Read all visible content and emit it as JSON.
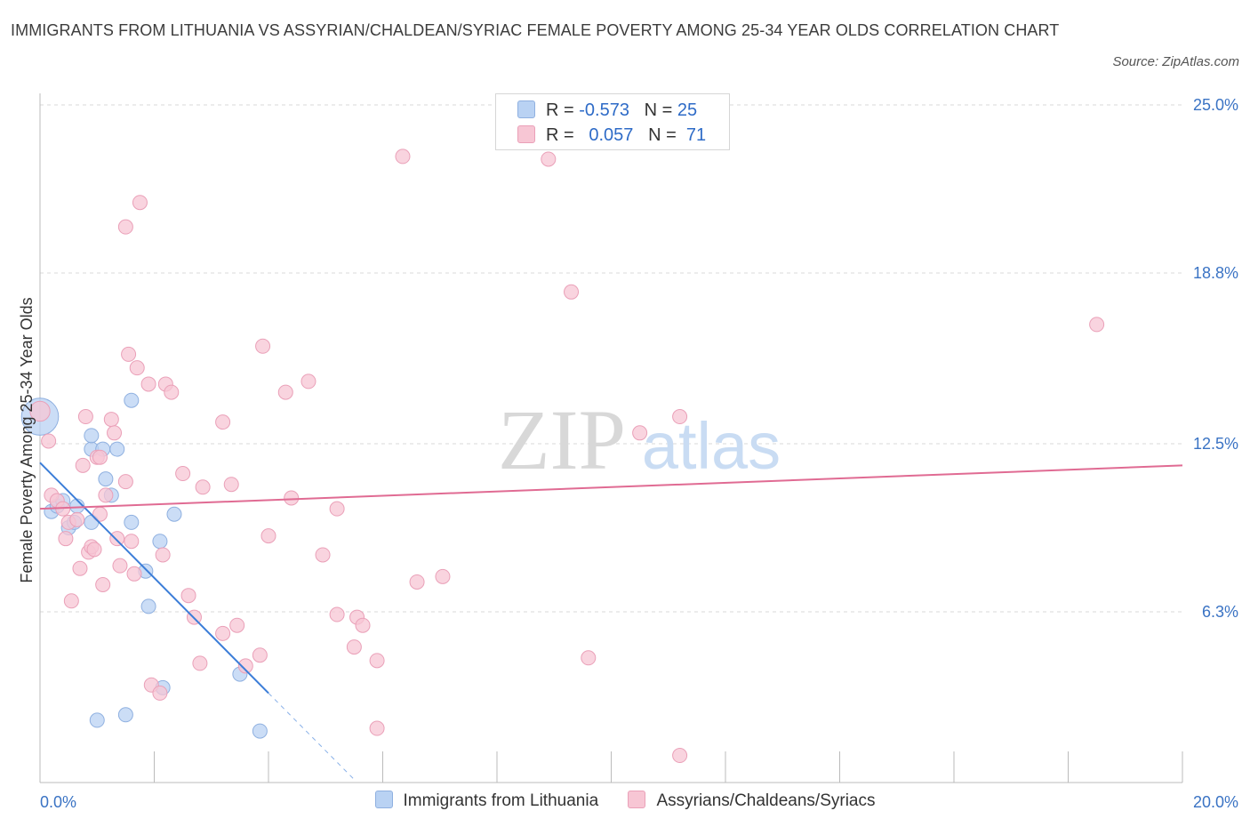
{
  "title": "IMMIGRANTS FROM LITHUANIA VS ASSYRIAN/CHALDEAN/SYRIAC FEMALE POVERTY AMONG 25-34 YEAR OLDS CORRELATION CHART",
  "source": "Source: ZipAtlas.com",
  "watermark": {
    "zip": "ZIP",
    "atlas": "atlas"
  },
  "legend_top": [
    {
      "r_label": "R =",
      "r_value": "-0.573",
      "n_label": "N =",
      "n_value": "25"
    },
    {
      "r_label": "R =",
      "r_value": "0.057",
      "n_label": "N =",
      "n_value": "71"
    }
  ],
  "colors": {
    "blue_fill": "#b9d2f3",
    "blue_stroke": "#8fb0e0",
    "blue_line": "#3b7dd8",
    "pink_fill": "#f7c6d4",
    "pink_stroke": "#eaa0b8",
    "pink_line": "#e06b93",
    "axis_label": "#3a73c4",
    "grid": "#d9d9d9"
  },
  "chart_data": {
    "type": "scatter",
    "title": "IMMIGRANTS FROM LITHUANIA VS ASSYRIAN/CHALDEAN/SYRIAC FEMALE POVERTY AMONG 25-34 YEAR OLDS CORRELATION CHART",
    "xlabel": "",
    "ylabel": "Female Poverty Among 25-34 Year Olds",
    "xlim": [
      0,
      20
    ],
    "ylim": [
      0,
      25
    ],
    "x_tick_labels": [
      {
        "value": 0,
        "label": "0.0%"
      },
      {
        "value": 20,
        "label": "20.0%"
      }
    ],
    "y_tick_labels": [
      {
        "value": 6.3,
        "label": "6.3%"
      },
      {
        "value": 12.5,
        "label": "12.5%"
      },
      {
        "value": 18.8,
        "label": "18.8%"
      },
      {
        "value": 25.0,
        "label": "25.0%"
      }
    ],
    "series": [
      {
        "name": "Immigrants from Lithuania",
        "color": "blue",
        "r": -0.573,
        "n": 25,
        "trend": {
          "x0": 0,
          "y0": 11.8,
          "x1": 4.0,
          "y1": 3.3,
          "dashed_to_x": 5.5
        },
        "points": [
          [
            0.0,
            13.5,
            2.6
          ],
          [
            0.2,
            10.0,
            1
          ],
          [
            0.3,
            10.2,
            1
          ],
          [
            0.4,
            10.4,
            1
          ],
          [
            0.5,
            9.4,
            1
          ],
          [
            0.6,
            9.6,
            1
          ],
          [
            0.65,
            10.2,
            1
          ],
          [
            0.9,
            12.3,
            1
          ],
          [
            0.9,
            12.8,
            1
          ],
          [
            0.9,
            9.6,
            1
          ],
          [
            1.1,
            12.3,
            1
          ],
          [
            1.15,
            11.2,
            1
          ],
          [
            1.25,
            10.6,
            1
          ],
          [
            1.35,
            12.3,
            1
          ],
          [
            1.6,
            9.6,
            1
          ],
          [
            1.6,
            14.1,
            1
          ],
          [
            1.85,
            7.8,
            1
          ],
          [
            2.1,
            8.9,
            1
          ],
          [
            2.35,
            9.9,
            1
          ],
          [
            1.9,
            6.5,
            1
          ],
          [
            2.15,
            3.5,
            1
          ],
          [
            3.5,
            4.0,
            1
          ],
          [
            1.5,
            2.5,
            1
          ],
          [
            1.0,
            2.3,
            1
          ],
          [
            3.85,
            1.9,
            1
          ]
        ]
      },
      {
        "name": "Assyrians/Chaldeans/Syriacs",
        "color": "pink",
        "r": 0.057,
        "n": 71,
        "trend": {
          "x0": 0,
          "y0": 10.1,
          "x1": 20,
          "y1": 11.7
        },
        "points": [
          [
            0.0,
            13.7,
            1.4
          ],
          [
            0.15,
            12.6,
            1
          ],
          [
            0.2,
            10.6,
            1
          ],
          [
            0.3,
            10.4,
            1
          ],
          [
            0.4,
            10.1,
            1
          ],
          [
            0.5,
            9.6,
            1
          ],
          [
            0.45,
            9.0,
            1
          ],
          [
            0.55,
            6.7,
            1
          ],
          [
            0.65,
            9.7,
            1
          ],
          [
            0.7,
            7.9,
            1
          ],
          [
            0.75,
            11.7,
            1
          ],
          [
            0.8,
            13.5,
            1
          ],
          [
            0.85,
            8.5,
            1
          ],
          [
            0.9,
            8.7,
            1
          ],
          [
            1.0,
            12.0,
            1
          ],
          [
            1.05,
            12.0,
            1
          ],
          [
            1.05,
            9.9,
            1
          ],
          [
            1.1,
            7.3,
            1
          ],
          [
            1.15,
            10.6,
            1
          ],
          [
            1.25,
            13.4,
            1
          ],
          [
            1.3,
            12.9,
            1
          ],
          [
            1.35,
            9.0,
            1
          ],
          [
            1.4,
            8.0,
            1
          ],
          [
            1.5,
            11.1,
            1
          ],
          [
            1.5,
            20.5,
            1
          ],
          [
            1.55,
            15.8,
            1
          ],
          [
            1.6,
            8.9,
            1
          ],
          [
            1.65,
            7.7,
            1
          ],
          [
            1.7,
            15.3,
            1
          ],
          [
            1.75,
            21.4,
            1
          ],
          [
            1.9,
            14.7,
            1
          ],
          [
            1.95,
            3.6,
            1
          ],
          [
            2.1,
            3.3,
            1
          ],
          [
            2.15,
            8.4,
            1
          ],
          [
            2.2,
            14.7,
            1
          ],
          [
            2.3,
            14.4,
            1
          ],
          [
            2.5,
            11.4,
            1
          ],
          [
            2.6,
            6.9,
            1
          ],
          [
            2.7,
            6.1,
            1
          ],
          [
            2.8,
            4.4,
            1
          ],
          [
            2.85,
            10.9,
            1
          ],
          [
            3.2,
            13.3,
            1
          ],
          [
            3.2,
            5.5,
            1
          ],
          [
            3.35,
            11.0,
            1
          ],
          [
            3.45,
            5.8,
            1
          ],
          [
            3.6,
            4.3,
            1
          ],
          [
            3.85,
            4.7,
            1
          ],
          [
            3.9,
            16.1,
            1
          ],
          [
            4.0,
            9.1,
            1
          ],
          [
            4.3,
            14.4,
            1
          ],
          [
            4.4,
            10.5,
            1
          ],
          [
            4.7,
            14.8,
            1
          ],
          [
            4.95,
            8.4,
            1
          ],
          [
            5.2,
            10.1,
            1
          ],
          [
            5.2,
            6.2,
            1
          ],
          [
            5.5,
            5.0,
            1
          ],
          [
            5.55,
            6.1,
            1
          ],
          [
            5.65,
            5.8,
            1
          ],
          [
            5.9,
            4.5,
            1
          ],
          [
            5.9,
            2.0,
            1
          ],
          [
            6.35,
            23.1,
            1
          ],
          [
            6.6,
            7.4,
            1
          ],
          [
            7.05,
            7.6,
            1
          ],
          [
            8.9,
            23.0,
            1
          ],
          [
            9.3,
            18.1,
            1
          ],
          [
            9.6,
            4.6,
            1
          ],
          [
            10.5,
            12.9,
            1
          ],
          [
            11.2,
            1.0,
            1
          ],
          [
            11.2,
            13.5,
            1
          ],
          [
            18.5,
            16.9,
            1
          ],
          [
            0.95,
            8.6,
            1
          ]
        ]
      }
    ],
    "legend": "bottom",
    "grid": true
  },
  "bottom_legend": [
    {
      "label": "Immigrants from Lithuania"
    },
    {
      "label": "Assyrians/Chaldeans/Syriacs"
    }
  ]
}
